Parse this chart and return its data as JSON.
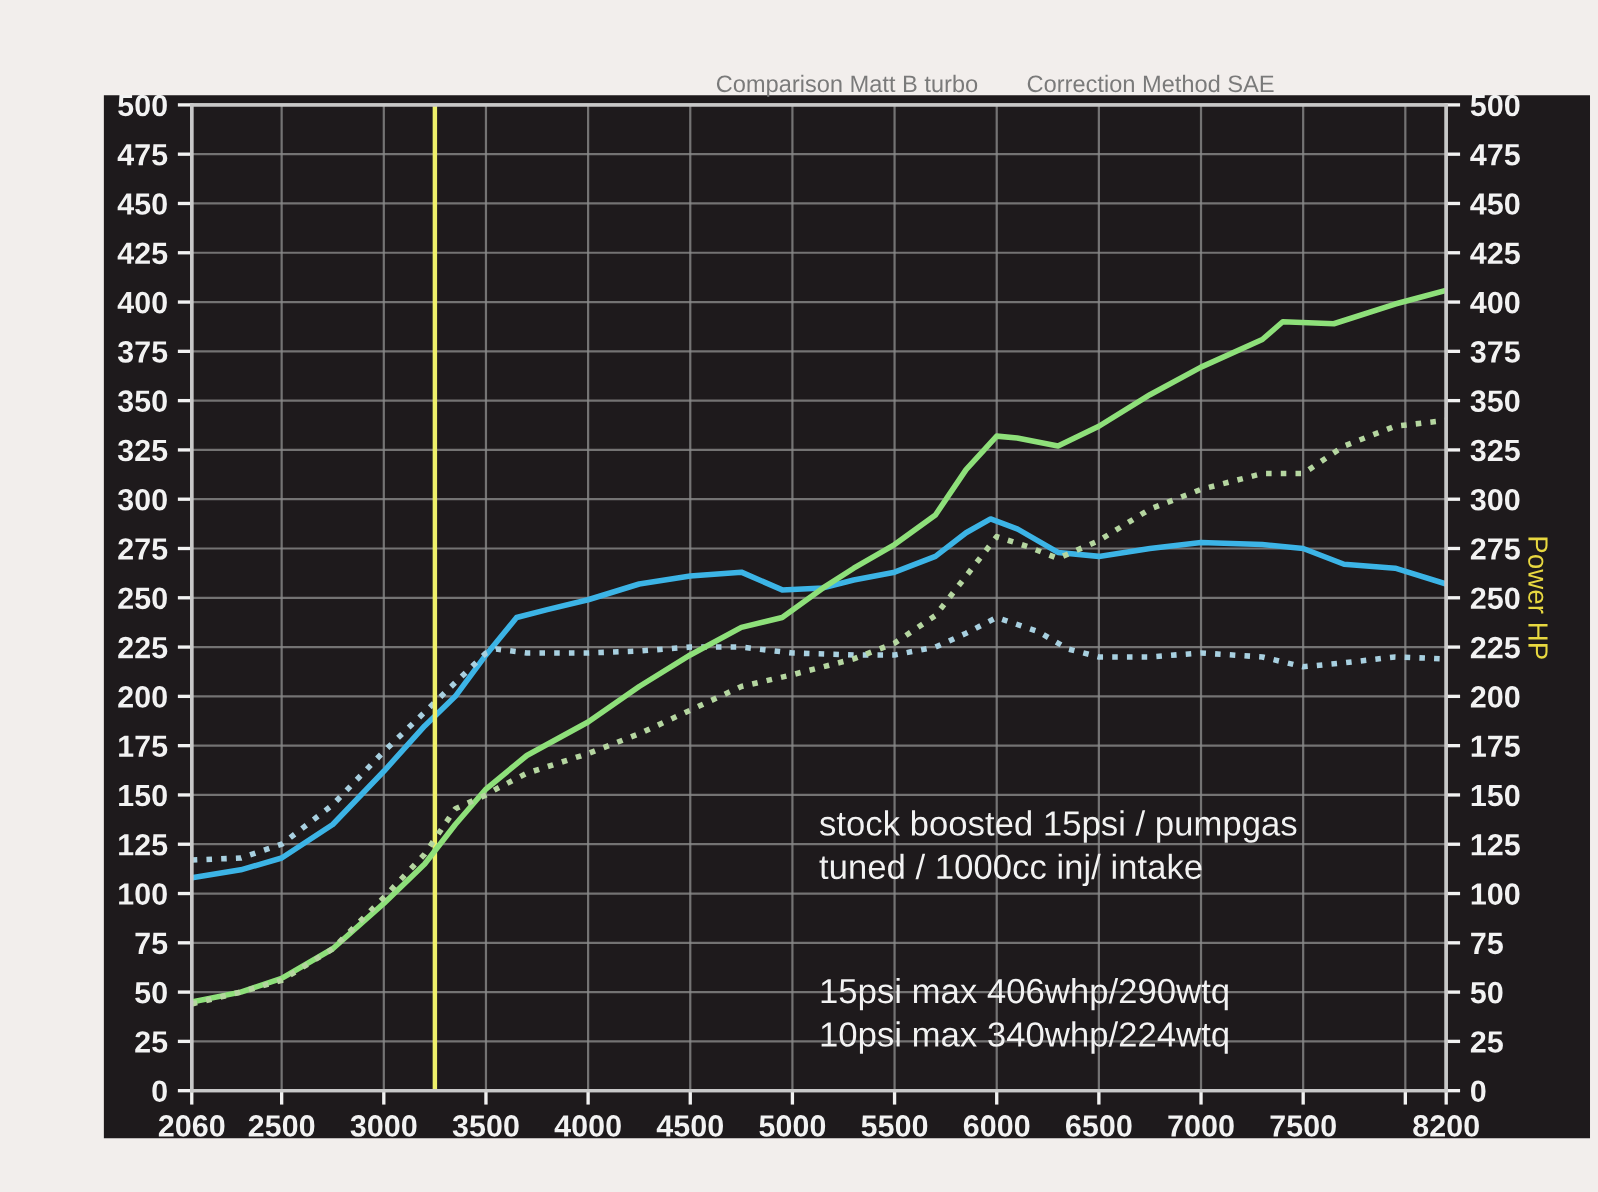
{
  "chart_data": {
    "type": "line",
    "title": "Comparison Matt B turbo",
    "subtitle": "Correction Method SAE",
    "y2label": "Power HP",
    "xlim": [
      2060,
      8200
    ],
    "xticks": [
      2060,
      2500,
      3000,
      3500,
      4000,
      4500,
      5000,
      5500,
      6000,
      6500,
      7000,
      7500,
      {
        "value": 8000,
        "label": null
      },
      8200
    ],
    "ylim": [
      0,
      500
    ],
    "yticks": [
      0,
      25,
      50,
      75,
      100,
      125,
      150,
      175,
      200,
      225,
      250,
      275,
      300,
      325,
      350,
      375,
      400,
      425,
      450,
      475,
      500
    ],
    "y2lim": [
      0,
      500
    ],
    "y2ticks": [
      0,
      25,
      50,
      75,
      100,
      125,
      150,
      175,
      200,
      225,
      250,
      275,
      300,
      325,
      350,
      375,
      400,
      425,
      450,
      475,
      500
    ],
    "grid": true,
    "marker": "none",
    "ref_lines": [
      {
        "axis": "x",
        "value": 3250,
        "color": "#eef06a",
        "line_style": "solid"
      }
    ],
    "annotations": [
      "stock boosted 15psi / pumpgas",
      "tuned / 1000cc inj/ intake",
      "15psi max 406whp/290wtq",
      "10psi max 340whp/224wtq"
    ],
    "series": [
      {
        "color": "#8ee07a",
        "line_style": "solid",
        "axis": "y2",
        "x": [
          2060,
          2300,
          2500,
          2750,
          3000,
          3200,
          3350,
          3500,
          3700,
          4000,
          4250,
          4500,
          4750,
          4950,
          5150,
          5300,
          5500,
          5700,
          5850,
          6000,
          6100,
          6300,
          6500,
          6750,
          7000,
          7300,
          7400,
          7650,
          7950,
          8200
        ],
        "values": [
          45,
          50,
          57,
          72,
          95,
          115,
          135,
          153,
          170,
          187,
          205,
          221,
          235,
          240,
          255,
          265,
          277,
          292,
          315,
          332,
          331,
          327,
          337,
          353,
          367,
          381,
          390,
          389,
          399,
          406
        ]
      },
      {
        "color": "#b5d6a0",
        "line_style": "dotted",
        "axis": "y2",
        "x": [
          2060,
          2300,
          2500,
          2750,
          3000,
          3200,
          3350,
          3500,
          3550,
          3700,
          4000,
          4250,
          4500,
          4750,
          5000,
          5300,
          5500,
          5700,
          5850,
          6000,
          6150,
          6300,
          6500,
          6750,
          7000,
          7300,
          7500,
          7700,
          7950,
          8200
        ],
        "values": [
          44,
          50,
          56,
          72,
          98,
          120,
          143,
          150,
          153,
          161,
          171,
          181,
          193,
          205,
          211,
          219,
          227,
          241,
          261,
          281,
          276,
          270,
          279,
          295,
          305,
          313,
          313,
          327,
          337,
          340
        ]
      },
      {
        "color": "#3cb4e6",
        "line_style": "solid",
        "x": [
          2060,
          2300,
          2500,
          2750,
          3000,
          3200,
          3350,
          3500,
          3650,
          3800,
          4000,
          4250,
          4500,
          4750,
          4950,
          5150,
          5300,
          5500,
          5700,
          5850,
          5970,
          6100,
          6300,
          6500,
          6750,
          7000,
          7300,
          7500,
          7700,
          7950,
          8200
        ],
        "values": [
          108,
          112,
          118,
          135,
          162,
          185,
          200,
          221,
          240,
          244,
          249,
          257,
          261,
          263,
          254,
          255,
          259,
          263,
          271,
          283,
          290,
          285,
          273,
          271,
          275,
          278,
          277,
          275,
          267,
          265,
          257
        ]
      },
      {
        "color": "#a8d0e0",
        "line_style": "dotted",
        "x": [
          2060,
          2300,
          2500,
          2750,
          3000,
          3200,
          3350,
          3500,
          3550,
          3700,
          4000,
          4250,
          4500,
          4750,
          5000,
          5300,
          5500,
          5700,
          5850,
          6000,
          6200,
          6350,
          6500,
          6750,
          7000,
          7300,
          7500,
          7700,
          7950,
          8200
        ],
        "values": [
          117,
          118,
          125,
          145,
          172,
          192,
          207,
          222,
          224,
          222,
          222,
          223,
          225,
          225,
          222,
          221,
          221,
          225,
          232,
          240,
          233,
          224,
          220,
          220,
          222,
          220,
          215,
          217,
          220,
          219
        ]
      }
    ]
  }
}
